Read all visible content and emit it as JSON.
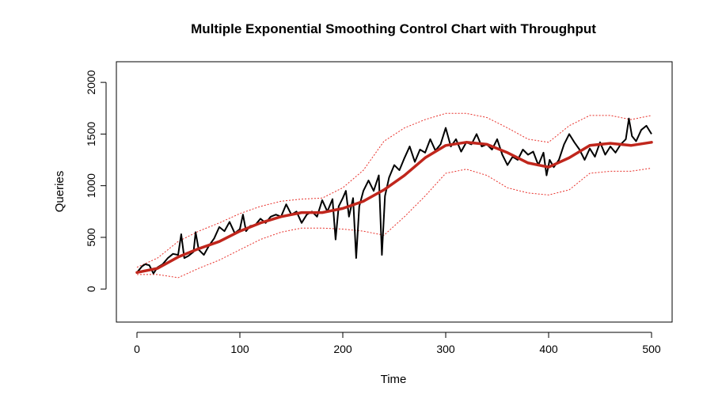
{
  "chart_data": {
    "type": "line",
    "title": "Multiple Exponential Smoothing Control Chart with Throughput",
    "xlabel": "Time",
    "ylabel": "Queries",
    "xlim": [
      -20,
      520
    ],
    "ylim": [
      -320,
      2200
    ],
    "x_ticks": [
      0,
      100,
      200,
      300,
      400,
      500
    ],
    "y_ticks": [
      0,
      500,
      1000,
      1500,
      2000
    ],
    "grid": false,
    "legend": "none",
    "colors": {
      "observed": "#000000",
      "smoothed": "#c0261c",
      "limits": "#e8302a"
    },
    "series": [
      {
        "role": "observed",
        "x": [
          0,
          5,
          8,
          12,
          16,
          20,
          25,
          30,
          35,
          40,
          43,
          46,
          50,
          55,
          57,
          60,
          65,
          70,
          75,
          80,
          85,
          90,
          95,
          100,
          103,
          106,
          110,
          115,
          120,
          125,
          130,
          135,
          140,
          145,
          150,
          155,
          160,
          165,
          170,
          175,
          180,
          185,
          190,
          193,
          196,
          200,
          203,
          206,
          210,
          213,
          216,
          220,
          225,
          230,
          235,
          238,
          241,
          245,
          250,
          255,
          260,
          265,
          270,
          275,
          280,
          285,
          290,
          295,
          300,
          305,
          310,
          315,
          320,
          325,
          330,
          335,
          340,
          345,
          350,
          355,
          360,
          365,
          370,
          375,
          380,
          385,
          390,
          395,
          398,
          401,
          405,
          410,
          415,
          420,
          425,
          430,
          435,
          440,
          445,
          450,
          455,
          460,
          465,
          470,
          475,
          478,
          481,
          485,
          490,
          495,
          500
        ],
        "y": [
          160,
          220,
          240,
          230,
          150,
          210,
          240,
          300,
          340,
          330,
          530,
          300,
          320,
          360,
          550,
          380,
          330,
          420,
          490,
          600,
          560,
          650,
          540,
          580,
          720,
          560,
          610,
          620,
          680,
          640,
          700,
          720,
          700,
          820,
          720,
          750,
          640,
          720,
          750,
          700,
          860,
          750,
          870,
          480,
          800,
          880,
          950,
          700,
          880,
          300,
          800,
          950,
          1050,
          950,
          1100,
          330,
          900,
          1080,
          1200,
          1150,
          1270,
          1380,
          1230,
          1350,
          1320,
          1450,
          1340,
          1400,
          1560,
          1380,
          1450,
          1330,
          1420,
          1400,
          1500,
          1380,
          1400,
          1350,
          1450,
          1300,
          1200,
          1280,
          1250,
          1350,
          1300,
          1330,
          1200,
          1320,
          1100,
          1250,
          1180,
          1250,
          1400,
          1500,
          1420,
          1350,
          1250,
          1360,
          1280,
          1420,
          1300,
          1380,
          1320,
          1400,
          1450,
          1650,
          1480,
          1430,
          1540,
          1580,
          1500
        ]
      },
      {
        "role": "smoothed",
        "x": [
          0,
          20,
          40,
          60,
          80,
          100,
          120,
          140,
          160,
          180,
          200,
          220,
          240,
          260,
          280,
          300,
          320,
          340,
          360,
          380,
          400,
          420,
          440,
          460,
          480,
          500
        ],
        "y": [
          160,
          200,
          310,
          390,
          460,
          560,
          640,
          700,
          740,
          740,
          780,
          850,
          960,
          1100,
          1270,
          1390,
          1420,
          1400,
          1320,
          1220,
          1180,
          1270,
          1390,
          1410,
          1390,
          1420
        ]
      },
      {
        "role": "limit",
        "x": [
          0,
          20,
          40,
          60,
          80,
          100,
          120,
          140,
          160,
          180,
          200,
          220,
          240,
          260,
          280,
          300,
          320,
          340,
          360,
          380,
          400,
          420,
          440,
          460,
          480,
          500
        ],
        "y": [
          210,
          300,
          460,
          560,
          640,
          730,
          800,
          850,
          870,
          880,
          980,
          1150,
          1430,
          1560,
          1640,
          1700,
          1700,
          1660,
          1560,
          1450,
          1420,
          1580,
          1680,
          1680,
          1640,
          1680
        ]
      },
      {
        "role": "limit",
        "x": [
          0,
          20,
          40,
          60,
          80,
          100,
          120,
          140,
          160,
          180,
          200,
          220,
          240,
          260,
          280,
          300,
          320,
          340,
          360,
          380,
          400,
          420,
          440,
          460,
          480,
          500
        ],
        "y": [
          140,
          140,
          110,
          200,
          280,
          380,
          480,
          550,
          590,
          590,
          580,
          560,
          520,
          700,
          900,
          1120,
          1160,
          1100,
          980,
          930,
          910,
          960,
          1120,
          1140,
          1140,
          1170
        ]
      }
    ]
  }
}
